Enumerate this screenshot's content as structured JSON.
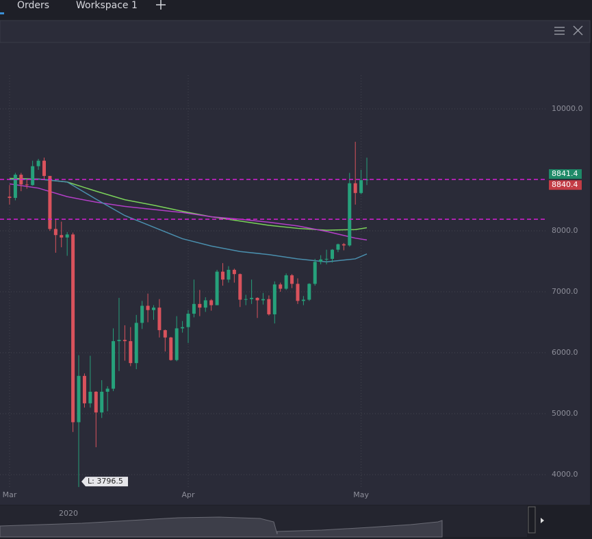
{
  "tabs": [
    "Orders",
    "Workspace 1"
  ],
  "chart_data": {
    "type": "candlestick",
    "x": [
      0,
      1,
      2,
      3,
      4,
      5,
      6,
      7,
      8,
      9,
      10,
      11,
      12,
      13,
      14,
      15,
      16,
      17,
      18,
      19,
      20,
      21,
      22,
      23,
      24,
      25,
      26,
      27,
      28,
      29,
      30,
      31,
      32,
      33,
      34,
      35,
      36,
      37,
      38,
      39,
      40,
      41,
      42,
      43,
      44,
      45,
      46,
      47,
      48,
      49,
      50,
      51,
      52,
      53,
      54,
      55,
      56,
      57,
      58,
      59,
      60,
      61,
      62
    ],
    "open": [
      8560,
      8540,
      8920,
      8760,
      8750,
      9060,
      9150,
      8900,
      8030,
      7930,
      7890,
      7940,
      4860,
      5620,
      5170,
      5360,
      5020,
      5360,
      5410,
      6190,
      6210,
      6190,
      5830,
      6490,
      6770,
      6700,
      6740,
      6370,
      6250,
      5880,
      6400,
      6420,
      6640,
      6800,
      6740,
      6860,
      6780,
      7330,
      7200,
      7360,
      7290,
      6870,
      6880,
      6900,
      6860,
      6880,
      6630,
      7120,
      7050,
      7270,
      7130,
      6850,
      6870,
      7130,
      7490,
      7530,
      7540,
      7690,
      7780,
      7760,
      8780,
      8620,
      8830
    ],
    "high": [
      8750,
      8950,
      8950,
      8850,
      9150,
      9180,
      9200,
      8900,
      8180,
      8150,
      7980,
      7970,
      5960,
      5660,
      5950,
      5370,
      5550,
      5450,
      6400,
      6900,
      6450,
      6420,
      6620,
      6850,
      6970,
      6780,
      6880,
      6380,
      6260,
      6600,
      6520,
      6700,
      7200,
      7030,
      6910,
      6880,
      7360,
      7470,
      7420,
      7380,
      7300,
      6950,
      7200,
      6910,
      6980,
      6940,
      7170,
      7150,
      7300,
      7290,
      7220,
      6930,
      7140,
      7540,
      7600,
      7690,
      7700,
      7790,
      7800,
      8950,
      9460,
      9000,
      9200
    ],
    "low": [
      8430,
      8500,
      8650,
      8690,
      8740,
      9000,
      8850,
      8000,
      7640,
      7730,
      7590,
      4700,
      3796.5,
      5100,
      5100,
      4450,
      4930,
      5040,
      5370,
      5700,
      5870,
      5780,
      5730,
      6390,
      6500,
      6540,
      6250,
      6020,
      5870,
      5860,
      6330,
      6160,
      6580,
      6600,
      6670,
      6690,
      6780,
      7100,
      7150,
      7150,
      6750,
      6780,
      6800,
      6570,
      6790,
      6610,
      6480,
      7000,
      7030,
      7060,
      6800,
      6780,
      6850,
      7100,
      7450,
      7450,
      7480,
      7650,
      7680,
      7740,
      8430,
      8600,
      8750
    ],
    "close": [
      8540,
      8920,
      8760,
      8750,
      9060,
      9150,
      8900,
      8030,
      7930,
      7890,
      7940,
      4860,
      5620,
      5170,
      5360,
      5020,
      5360,
      5410,
      6190,
      6210,
      6190,
      5830,
      6490,
      6770,
      6700,
      6740,
      6370,
      6250,
      5880,
      6400,
      6420,
      6640,
      6800,
      6740,
      6860,
      6780,
      7330,
      7200,
      7360,
      7290,
      6870,
      6880,
      6900,
      6860,
      6880,
      6630,
      7120,
      7050,
      7270,
      7130,
      6850,
      6870,
      7130,
      7490,
      7530,
      7540,
      7690,
      7780,
      7760,
      8780,
      8620,
      8830,
      8841.4
    ],
    "up_color": "#26a17b",
    "down_color": "#d9525c",
    "lines": [
      {
        "color": "#7bd35a",
        "x": [
          0,
          5,
          10,
          15,
          20,
          25,
          30,
          35,
          40,
          45,
          50,
          55,
          60,
          62
        ],
        "values": [
          8860,
          8850,
          8800,
          8650,
          8510,
          8420,
          8320,
          8230,
          8160,
          8090,
          8040,
          8010,
          8020,
          8050
        ]
      },
      {
        "color": "#b43fc8",
        "x": [
          0,
          5,
          10,
          15,
          20,
          25,
          30,
          35,
          40,
          45,
          50,
          55,
          60,
          62
        ],
        "values": [
          8770,
          8700,
          8560,
          8470,
          8400,
          8350,
          8300,
          8230,
          8190,
          8140,
          8080,
          7990,
          7880,
          7850
        ]
      },
      {
        "color": "#4a8fae",
        "x": [
          0,
          5,
          10,
          15,
          20,
          25,
          30,
          35,
          40,
          45,
          50,
          55,
          60,
          62
        ],
        "values": [
          8840,
          8850,
          8800,
          8520,
          8250,
          8060,
          7870,
          7750,
          7660,
          7610,
          7540,
          7490,
          7540,
          7620
        ]
      }
    ],
    "xlim": [
      -1.66,
      93.35
    ],
    "xticks": [
      {
        "value": 0,
        "label": "Mar"
      },
      {
        "value": 31,
        "label": "Apr"
      },
      {
        "value": 61,
        "label": "May"
      }
    ],
    "ylim": [
      3787,
      11112
    ],
    "yticks": [
      {
        "value": 4000,
        "label": "4000.0"
      },
      {
        "value": 5000,
        "label": "5000.0"
      },
      {
        "value": 6000,
        "label": "6000.0"
      },
      {
        "value": 7000,
        "label": "7000.0"
      },
      {
        "value": 8000,
        "label": "8000.0"
      },
      {
        "value": 10000,
        "label": "10000.0"
      }
    ],
    "grid": true,
    "h_lines": [
      {
        "value": 8843,
        "color": "#d61fd6"
      },
      {
        "value": 8190,
        "color": "#d61fd6"
      }
    ],
    "price_tags": [
      {
        "value": 8841.4,
        "color": "#1e8a68"
      },
      {
        "value": 8840.4,
        "color": "#c33c45"
      }
    ],
    "low_marker": {
      "x": 12,
      "value": 3796.5,
      "label": "L: 3796.5"
    },
    "navigator_label": "2020"
  }
}
